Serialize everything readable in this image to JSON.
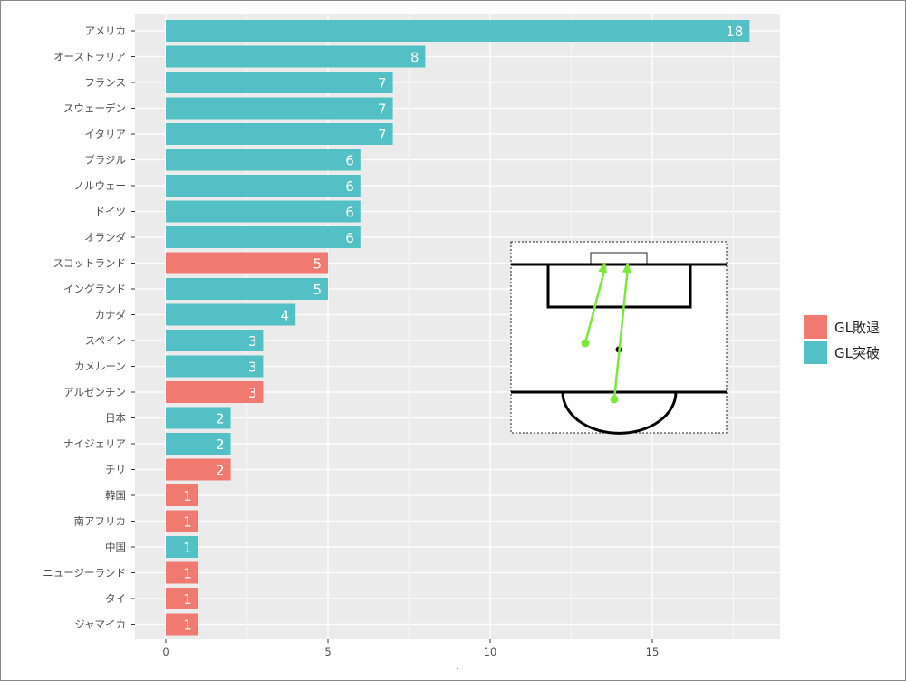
{
  "chart_data": {
    "type": "bar",
    "orientation": "horizontal",
    "title": "",
    "xlabel": "-",
    "ylabel": "",
    "xlim": [
      -0.9,
      18.9
    ],
    "xticks": [
      0,
      5,
      10,
      15
    ],
    "grid": true,
    "categories": [
      "アメリカ",
      "オーストラリア",
      "フランス",
      "スウェーデン",
      "イタリア",
      "ブラジル",
      "ノルウェー",
      "ドイツ",
      "オランダ",
      "スコットランド",
      "イングランド",
      "カナダ",
      "スペイン",
      "カメルーン",
      "アルゼンチン",
      "日本",
      "ナイジェリア",
      "チリ",
      "韓国",
      "南アフリカ",
      "中国",
      "ニュージーランド",
      "タイ",
      "ジャマイカ"
    ],
    "values": [
      18,
      8,
      7,
      7,
      7,
      6,
      6,
      6,
      6,
      5,
      5,
      4,
      3,
      3,
      3,
      2,
      2,
      2,
      1,
      1,
      1,
      1,
      1,
      1
    ],
    "groups": [
      "GL突破",
      "GL突破",
      "GL突破",
      "GL突破",
      "GL突破",
      "GL突破",
      "GL突破",
      "GL突破",
      "GL突破",
      "GL敗退",
      "GL突破",
      "GL突破",
      "GL突破",
      "GL突破",
      "GL敗退",
      "GL突破",
      "GL突破",
      "GL敗退",
      "GL敗退",
      "GL敗退",
      "GL突破",
      "GL敗退",
      "GL敗退",
      "GL敗退"
    ],
    "legend": {
      "placement": "right",
      "entries": [
        {
          "label": "GL敗退",
          "color": "#F07A70"
        },
        {
          "label": "GL突破",
          "color": "#52C0C5"
        }
      ]
    }
  },
  "colors": {
    "panel": "#EBEBEB",
    "grid": "#FFFFFF",
    "arrow": "#7CE83A"
  }
}
